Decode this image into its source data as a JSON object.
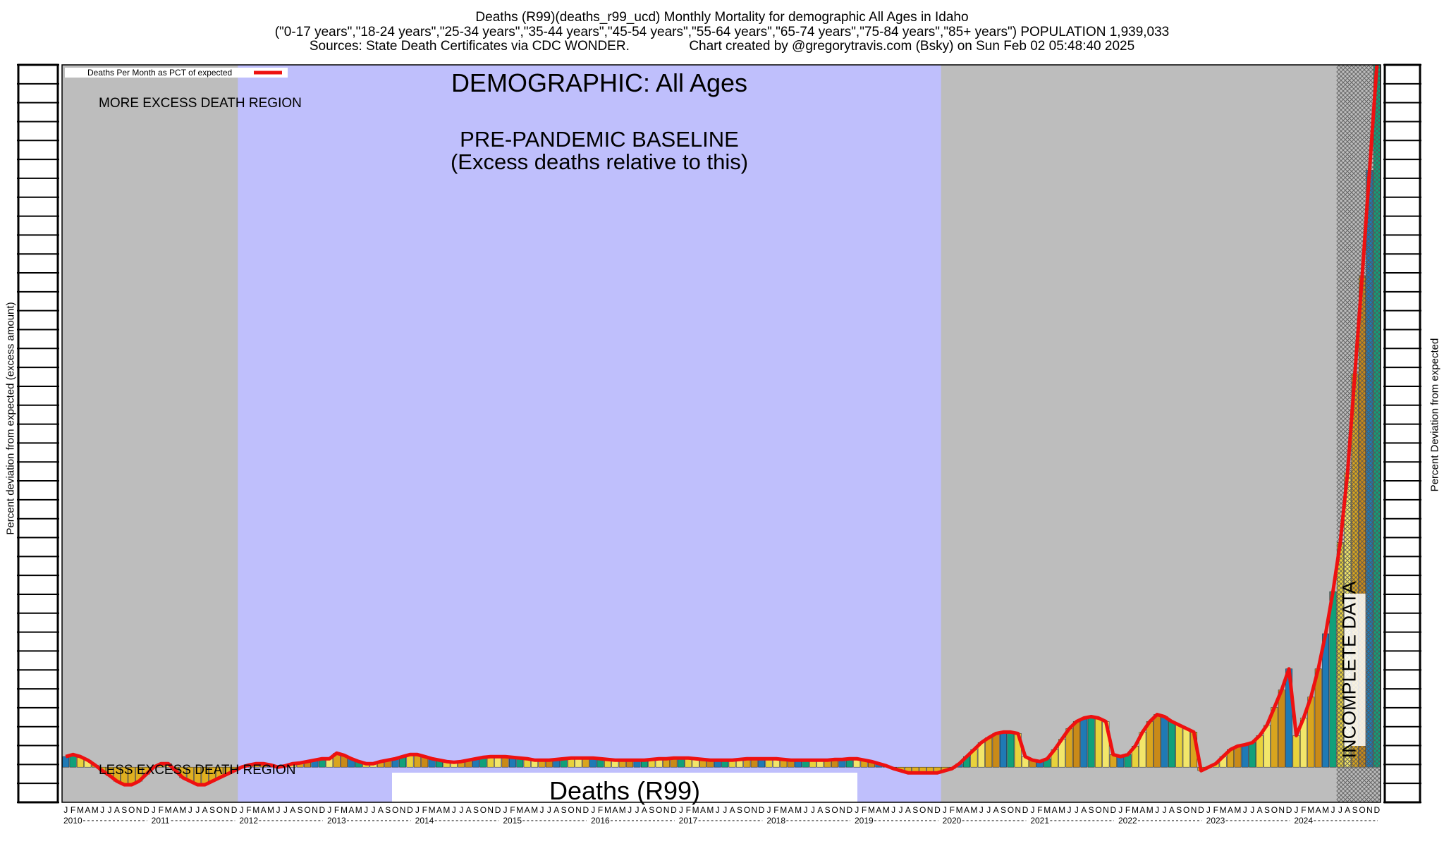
{
  "header": {
    "line1": "Deaths (R99)(deaths_r99_ucd) Monthly Mortality for demographic All Ages in Idaho",
    "line2": "(\"0-17 years\",\"18-24 years\",\"25-34 years\",\"35-44 years\",\"45-54 years\",\"55-64 years\",\"65-74 years\",\"75-84 years\",\"85+ years\") POPULATION 1,939,033",
    "line3": "Sources: State Death Certificates via CDC WONDER.                Chart created by @gregorytravis.com (Bsky) on Sun Feb 02 05:48:40 2025"
  },
  "axes": {
    "left_label": "Percent deviation from expected (excess amount)",
    "right_label": "Percent Deviation from expected"
  },
  "chart_data": {
    "type": "bar",
    "title": "DEMOGRAPHIC: All Ages",
    "bottom_title": "Deaths (R99)",
    "legend": {
      "label": "Deaths Per Month as PCT of expected",
      "color": "#ee1111",
      "placement": "top-left"
    },
    "regions": {
      "more_excess": "MORE EXCESS DEATH REGION",
      "less_excess": "LESS EXCESS DEATH REGION",
      "baseline_line1": "PRE-PANDEMIC BASELINE",
      "baseline_line2": "(Excess deaths relative to this)",
      "baseline_range": [
        "2012-01",
        "2019-12"
      ],
      "incomplete": "INCOMPLETE DATA",
      "incomplete_range": [
        "2024-07",
        "2024-12"
      ]
    },
    "colors": {
      "gray_region": "#bdbdbd",
      "baseline_region": "#bfbffc",
      "line": "#ee1111"
    },
    "x_month_labels": [
      "J",
      "F",
      "M",
      "A",
      "M",
      "J",
      "J",
      "A",
      "S",
      "O",
      "N",
      "D"
    ],
    "years": [
      "2010",
      "2011",
      "2012",
      "2013",
      "2014",
      "2015",
      "2016",
      "2017",
      "2018",
      "2019",
      "2020",
      "2021",
      "2022",
      "2023",
      "2024"
    ],
    "y_unit": "percent deviation from expected",
    "ylim": [
      -5,
      100
    ],
    "values": [
      [
        1.5,
        1.8,
        1.5,
        1.0,
        0.3,
        -0.5,
        -1.2,
        -2.0,
        -2.5,
        -2.5,
        -2.0,
        -1.0
      ],
      [
        0.0,
        0.5,
        0.5,
        -0.5,
        -1.5,
        -2.0,
        -2.5,
        -2.5,
        -2.0,
        -1.5,
        -1.0,
        -0.5
      ],
      [
        0.0,
        0.3,
        0.5,
        0.5,
        0.3,
        0.0,
        0.2,
        0.5,
        0.6,
        0.8,
        1.0,
        1.2
      ],
      [
        1.2,
        2.0,
        1.7,
        1.2,
        0.8,
        0.5,
        0.5,
        0.8,
        1.0,
        1.2,
        1.5,
        1.8
      ],
      [
        1.8,
        1.5,
        1.2,
        1.0,
        0.8,
        0.7,
        0.8,
        1.0,
        1.2,
        1.4,
        1.5,
        1.5
      ],
      [
        1.5,
        1.4,
        1.3,
        1.2,
        1.0,
        1.0,
        1.0,
        1.1,
        1.2,
        1.3,
        1.3,
        1.3
      ],
      [
        1.3,
        1.2,
        1.1,
        1.0,
        1.0,
        1.0,
        1.0,
        1.0,
        1.1,
        1.2,
        1.2,
        1.3
      ],
      [
        1.3,
        1.3,
        1.2,
        1.1,
        1.0,
        1.0,
        1.0,
        1.0,
        1.1,
        1.2,
        1.2,
        1.2
      ],
      [
        1.2,
        1.2,
        1.1,
        1.0,
        1.0,
        1.0,
        1.0,
        1.0,
        1.0,
        1.1,
        1.1,
        1.2
      ],
      [
        1.2,
        1.0,
        0.8,
        0.5,
        0.2,
        -0.2,
        -0.5,
        -0.8,
        -0.8,
        -0.8,
        -0.8,
        -0.8
      ],
      [
        -0.5,
        -0.2,
        0.5,
        1.5,
        2.5,
        3.5,
        4.2,
        4.8,
        5.0,
        5.0,
        4.8,
        1.5
      ],
      [
        1.0,
        0.8,
        1.2,
        2.5,
        4.0,
        5.5,
        6.5,
        7.0,
        7.2,
        7.0,
        6.5,
        1.8
      ],
      [
        1.5,
        1.8,
        3.0,
        5.0,
        6.5,
        7.5,
        7.2,
        6.5,
        6.0,
        5.5,
        5.0,
        -0.5
      ],
      [
        0.0,
        0.5,
        1.5,
        2.5,
        3.0,
        3.2,
        3.5,
        4.5,
        6.0,
        8.5,
        11.0,
        14.0
      ],
      [
        4.5,
        7.0,
        10.0,
        14.0,
        19.0,
        25.0,
        32.0,
        42.0,
        56.0,
        70.0,
        85.0,
        100.0
      ]
    ]
  }
}
